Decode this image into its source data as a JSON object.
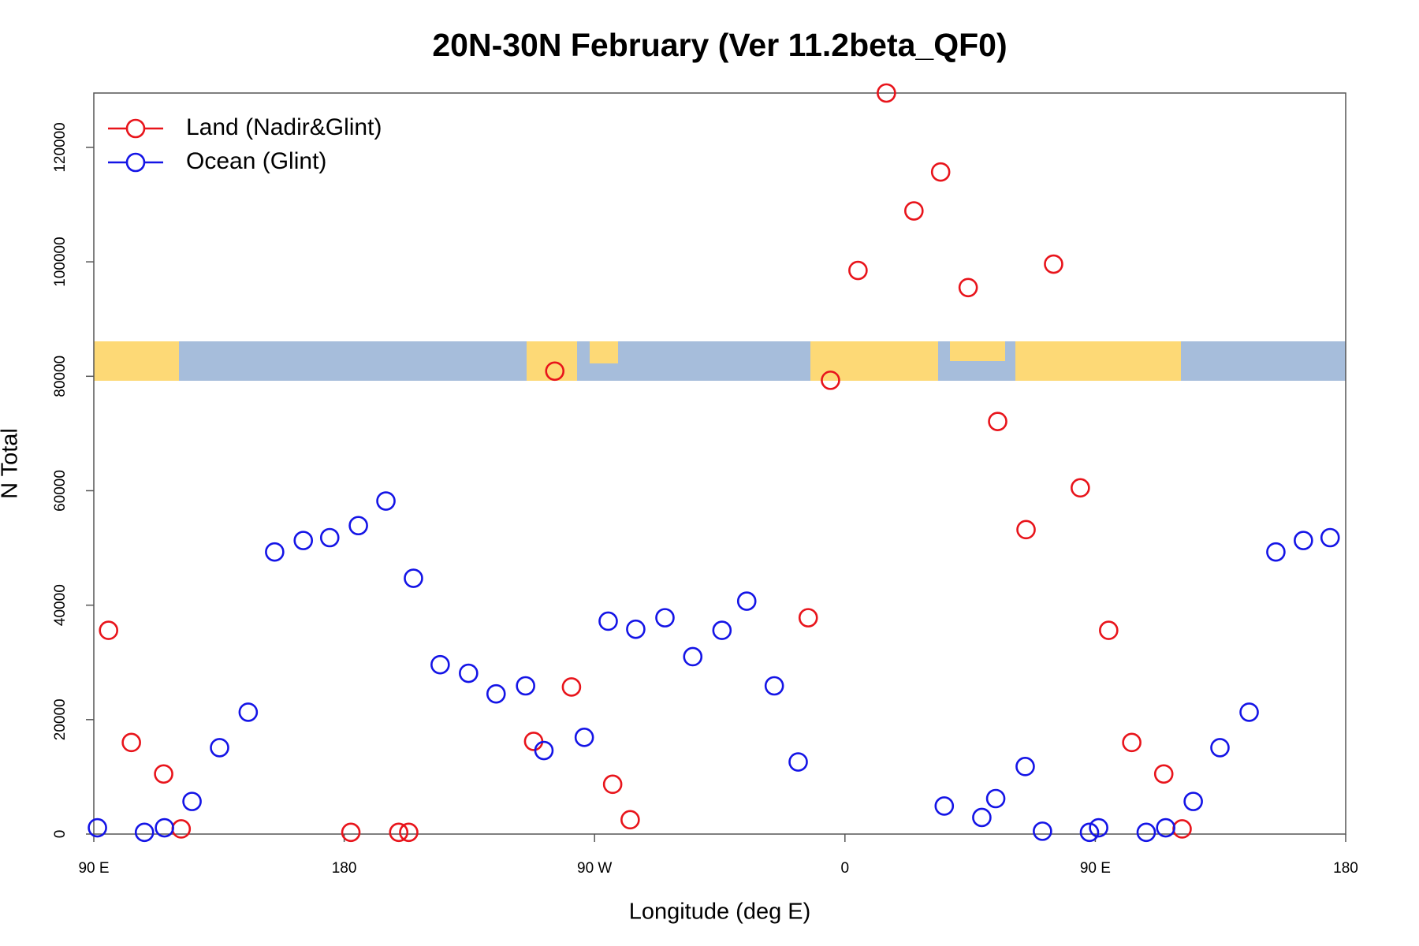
{
  "chart_data": {
    "type": "scatter",
    "title": "20N-30N February (Ver 11.2beta_QF0)",
    "x_label": "Longitude (deg E)",
    "y_label": "N Total",
    "xlim": [
      90,
      540
    ],
    "ylim": [
      0,
      129500
    ],
    "xticks": [
      {
        "value": 90,
        "label": "90 E"
      },
      180,
      {
        "value": 270,
        "label": "90 W"
      },
      {
        "value": 360,
        "label": "0"
      },
      {
        "value": 450,
        "label": "90 E"
      },
      {
        "value": 540,
        "label": "180"
      }
    ],
    "yticks": [
      0,
      20000,
      40000,
      60000,
      80000,
      100000,
      120000
    ],
    "legend": "topleft",
    "series": [
      {
        "name": "Land (Nadir&Glint)",
        "color": "#e8141b",
        "x": [
          95.3,
          103.5,
          115.1,
          121.4,
          182.4,
          199.6,
          203.2,
          248.1,
          255.7,
          261.7,
          276.5,
          282.8,
          346.8,
          354.8,
          364.7,
          374.9,
          384.8,
          394.4,
          404.3,
          414.9,
          425.1,
          435.0,
          444.6,
          454.8,
          463.1,
          474.6,
          481.2
        ],
        "values": [
          35600,
          16000,
          10500,
          900,
          300,
          300,
          300,
          16200,
          80900,
          25700,
          8700,
          2500,
          37800,
          79300,
          98500,
          129500,
          108900,
          115700,
          95500,
          72100,
          53200,
          99600,
          60500,
          35600,
          16000,
          10500,
          900
        ]
      },
      {
        "name": "Ocean (Glint)",
        "color": "#1414e6",
        "x": [
          91.3,
          108.2,
          115.4,
          125.3,
          135.2,
          145.5,
          155.0,
          165.3,
          174.8,
          185.1,
          195.0,
          204.9,
          214.5,
          224.7,
          234.6,
          245.2,
          251.8,
          266.3,
          274.9,
          284.8,
          295.3,
          305.3,
          315.8,
          324.7,
          334.6,
          343.2,
          395.7,
          409.2,
          414.2,
          424.8,
          431.0,
          447.9,
          451.2,
          468.3,
          475.3,
          485.2,
          494.8,
          505.3,
          514.9,
          524.8,
          534.4
        ],
        "values": [
          1100,
          300,
          1100,
          5700,
          15100,
          21300,
          49300,
          51300,
          51800,
          53900,
          58200,
          44700,
          29600,
          28100,
          24500,
          25900,
          14600,
          16900,
          37200,
          35800,
          37800,
          31000,
          35600,
          40700,
          25900,
          12600,
          4900,
          2900,
          6200,
          11800,
          500,
          300,
          1100,
          300,
          1100,
          5700,
          15100,
          21300,
          49300,
          51300,
          51800
        ]
      }
    ]
  }
}
